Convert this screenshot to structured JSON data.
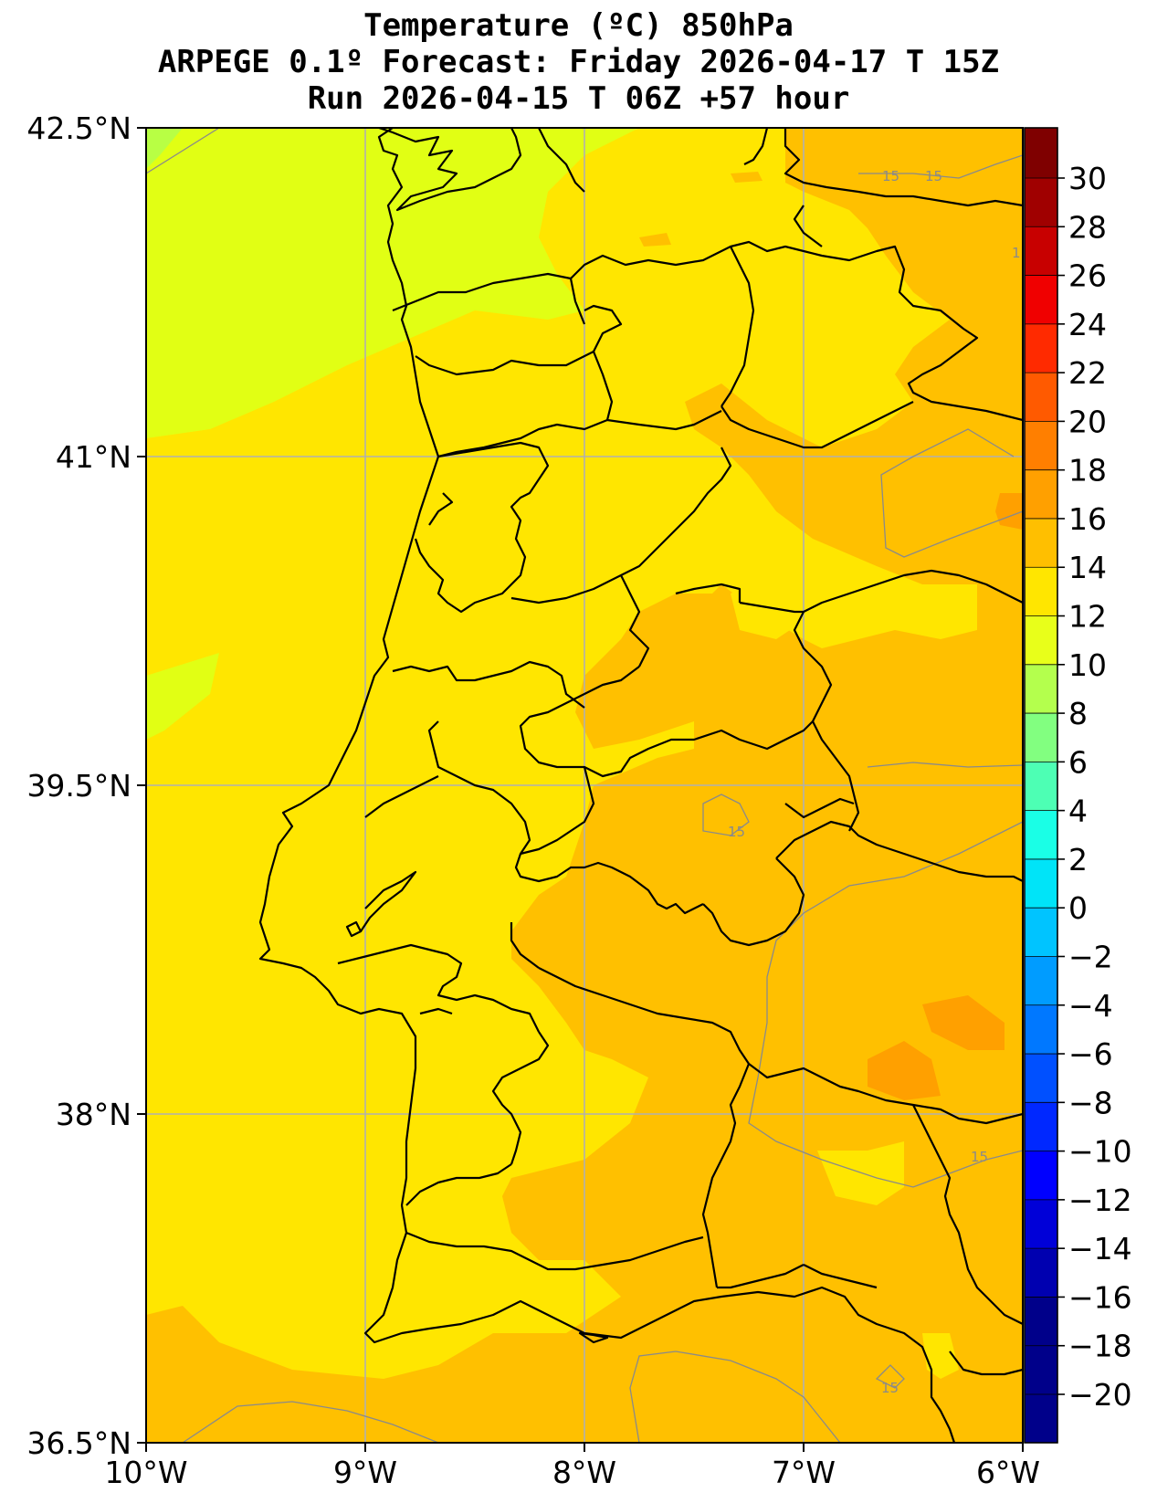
{
  "title": {
    "line1": "Temperature (ºC) 850hPa",
    "line2": "ARPEGE 0.1º Forecast: Friday 2026-04-17 T 15Z",
    "line3": "Run 2026-04-15 T 06Z +57 hour"
  },
  "axes": {
    "lat_ticks": [
      "42.5°N",
      "41°N",
      "39.5°N",
      "38°N",
      "36.5°N"
    ],
    "lon_ticks": [
      "10°W",
      "9°W",
      "8°W",
      "7°W",
      "6°W"
    ]
  },
  "colorbar": {
    "labels": [
      "30",
      "28",
      "26",
      "24",
      "22",
      "20",
      "18",
      "16",
      "14",
      "12",
      "10",
      "8",
      "6",
      "4",
      "2",
      "0",
      "−2",
      "−4",
      "−6",
      "−8",
      "−10",
      "−12",
      "−14",
      "−16",
      "−18",
      "−20"
    ],
    "colors_top_to_bottom": [
      "#7f0000",
      "#a00000",
      "#c80000",
      "#f00000",
      "#ff2a00",
      "#ff5a00",
      "#ff7f00",
      "#ffa000",
      "#ffbf00",
      "#ffe600",
      "#e8ff1a",
      "#b4ff4d",
      "#82ff80",
      "#4dffb4",
      "#1affe6",
      "#00e4f8",
      "#00c4ff",
      "#009cff",
      "#0078ff",
      "#0050ff",
      "#0028ff",
      "#0000ff",
      "#0000d8",
      "#0000b0",
      "#00008a"
    ]
  },
  "contour_labels": [
    "15",
    "15",
    "1",
    "15",
    "15",
    "15"
  ],
  "colors": {
    "temp_10_12": "#e1ff14",
    "temp_8_10": "#b8ff44",
    "temp_12_14": "#ffe600",
    "temp_14_16": "#ffc000",
    "temp_16_18": "#ffa000",
    "coastline": "#000000",
    "gridline": "#b0b0b0"
  }
}
